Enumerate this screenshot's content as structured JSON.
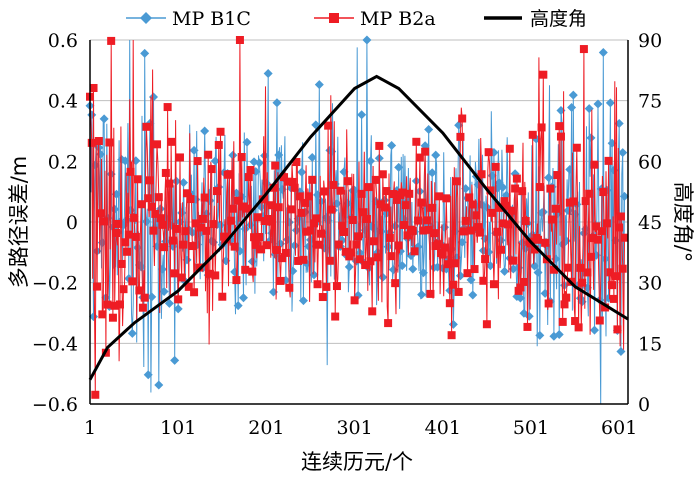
{
  "chart_data": {
    "type": "line",
    "xlabel": "连续历元/个",
    "ylabel": "多路径误差/m",
    "y2label": "高度角/°",
    "x_ticks": [
      1,
      101,
      201,
      301,
      401,
      501,
      601
    ],
    "ylim": [
      -0.6,
      0.6
    ],
    "y_ticks": [
      -0.6,
      -0.4,
      -0.2,
      0,
      0.2,
      0.4,
      0.6
    ],
    "y2lim": [
      0,
      90
    ],
    "y2_ticks": [
      0,
      15,
      30,
      45,
      60,
      75,
      90
    ],
    "xlim": [
      1,
      611
    ],
    "grid": "horizontal",
    "legend_position": "top",
    "colors": {
      "b1c": "#4a9ad4",
      "b2a": "#ee1c24",
      "elevation": "#000000",
      "grid": "#bfbfbf"
    },
    "series": [
      {
        "name": "MP B1C",
        "axis": "left",
        "marker": "diamond",
        "generated": "noise",
        "amplitude": 0.14,
        "seed": 7
      },
      {
        "name": "MP B2a",
        "axis": "right_offset",
        "marker": "square",
        "generated": "noise",
        "amplitude": 0.13,
        "seed": 19
      },
      {
        "name": "高度角",
        "axis": "right",
        "x": [
          1,
          21,
          51,
          101,
          151,
          201,
          251,
          301,
          326,
          351,
          401,
          451,
          501,
          551,
          611
        ],
        "values": [
          6,
          14,
          20,
          28,
          39,
          52,
          66,
          78,
          81,
          78,
          67,
          53,
          40,
          29,
          21
        ]
      }
    ]
  }
}
